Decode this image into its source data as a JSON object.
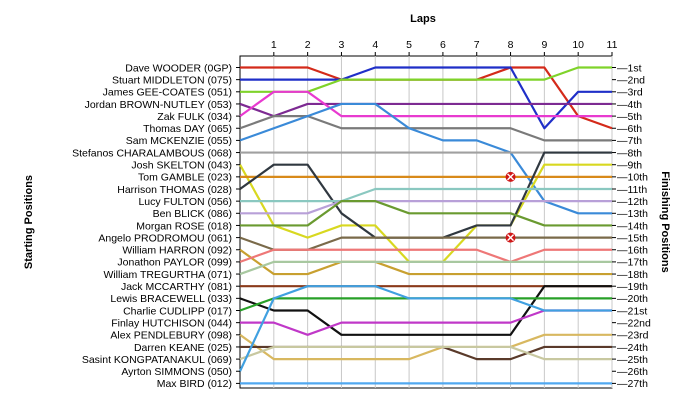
{
  "chart_data": {
    "type": "line",
    "title": "",
    "xlabel": "Laps",
    "ylabel_left": "Starting Positions",
    "ylabel_right": "Finishing Positions",
    "x": [
      0,
      1,
      2,
      3,
      4,
      5,
      6,
      7,
      8,
      9,
      10,
      11
    ],
    "x_tick_labels": [
      "1",
      "2",
      "3",
      "4",
      "5",
      "6",
      "7",
      "8",
      "9",
      "10",
      "11"
    ],
    "position_range": [
      1,
      27
    ],
    "grid": true,
    "starting_positions": [
      "Dave WOODER (0GP)",
      "Stuart MIDDLETON (075)",
      "James GEE-COATES (051)",
      "Jordan BROWN-NUTLEY (053)",
      "Zak FULK (034)",
      "Thomas DAY (065)",
      "Sam MCKENZIE (055)",
      "Stefanos CHARALAMBOUS (068)",
      "Josh SKELTON (043)",
      "Tom GAMBLE (023)",
      "Harrison THOMAS (028)",
      "Lucy FULTON (056)",
      "Ben BLICK (086)",
      "Morgan ROSE (018)",
      "Angelo PRODROMOU (061)",
      "William HARRON (092)",
      "Jonathon PAYLOR (099)",
      "William TREGURTHA (071)",
      "Jack MCCARTHY (081)",
      "Lewis BRACEWELL (033)",
      "Charlie CUDLIPP (017)",
      "Finlay HUTCHISON (044)",
      "Alex PENDLEBURY (098)",
      "Darren KEANE (025)",
      "Sasint KONGPATANAKUL (069)",
      "Ayrton SIMMONS (050)",
      "Max BIRD (012)"
    ],
    "finishing_positions": [
      "1st",
      "2nd",
      "3rd",
      "4th",
      "5th",
      "6th",
      "7th",
      "8th",
      "9th",
      "10th",
      "11th",
      "12th",
      "13th",
      "14th",
      "15th",
      "16th",
      "17th",
      "18th",
      "19th",
      "20th",
      "21st",
      "22nd",
      "23rd",
      "24th",
      "25th",
      "26th",
      "27th"
    ],
    "series": [
      {
        "color": "#d42a1a",
        "values": [
          1,
          1,
          1,
          2,
          2,
          2,
          2,
          2,
          1,
          1,
          5,
          6
        ]
      },
      {
        "color": "#1f2fc8",
        "values": [
          2,
          2,
          2,
          2,
          1,
          1,
          1,
          1,
          1,
          6,
          3,
          3
        ]
      },
      {
        "color": "#7fd32a",
        "values": [
          3,
          3,
          3,
          2,
          2,
          2,
          2,
          2,
          2,
          2,
          1,
          1
        ]
      },
      {
        "color": "#7d2a92",
        "values": [
          4,
          5,
          4,
          4,
          4,
          4,
          4,
          4,
          4,
          4,
          4,
          4
        ]
      },
      {
        "color": "#e83ad0",
        "values": [
          5,
          3,
          3,
          5,
          5,
          5,
          5,
          5,
          5,
          5,
          5,
          5
        ]
      },
      {
        "color": "#7a7a7a",
        "values": [
          6,
          5,
          5,
          6,
          6,
          6,
          6,
          6,
          6,
          7,
          7,
          7
        ]
      },
      {
        "color": "#3a8ad8",
        "values": [
          7,
          6,
          5,
          4,
          4,
          6,
          7,
          7,
          8,
          12,
          13,
          13
        ]
      },
      {
        "color": "#a0a0a0",
        "values": [
          8,
          8,
          8,
          8,
          8,
          8,
          8,
          8,
          8,
          8,
          8,
          8
        ]
      },
      {
        "color": "#d8d820",
        "values": [
          9,
          14,
          15,
          14,
          14,
          17,
          17,
          14,
          14,
          9,
          9,
          9
        ]
      },
      {
        "color": "#d88a1a",
        "values": [
          10,
          10,
          10,
          10,
          10,
          10,
          10,
          10,
          10,
          10,
          10,
          10
        ]
      },
      {
        "color": "#303840",
        "values": [
          11,
          9,
          9,
          13,
          15,
          15,
          15,
          14,
          14,
          8,
          8,
          8
        ]
      },
      {
        "color": "#8ac8c0",
        "values": [
          12,
          12,
          12,
          12,
          11,
          11,
          11,
          11,
          11,
          11,
          11,
          11
        ]
      },
      {
        "color": "#b8a0d8",
        "values": [
          13,
          13,
          13,
          12,
          12,
          12,
          12,
          12,
          12,
          12,
          12,
          12
        ]
      },
      {
        "color": "#6a9a30",
        "values": [
          14,
          14,
          14,
          12,
          12,
          13,
          13,
          13,
          13,
          14,
          14,
          14
        ]
      },
      {
        "color": "#7a6a4a",
        "values": [
          15,
          16,
          16,
          15,
          15,
          15,
          15,
          15,
          15,
          15,
          15,
          15
        ]
      },
      {
        "color": "#c8a030",
        "values": [
          16,
          18,
          18,
          17,
          17,
          18,
          18,
          18,
          18,
          18,
          18,
          18
        ]
      },
      {
        "color": "#ee7777",
        "values": [
          17,
          16,
          16,
          16,
          16,
          16,
          16,
          16,
          17,
          16,
          16,
          16
        ]
      },
      {
        "color": "#a8c8a0",
        "values": [
          18,
          17,
          17,
          17,
          17,
          17,
          17,
          17,
          17,
          17,
          17,
          17
        ]
      },
      {
        "color": "#8a3a1a",
        "values": [
          19,
          19,
          19,
          19,
          19,
          19,
          19,
          19,
          19,
          19,
          19,
          19
        ]
      },
      {
        "color": "#111111",
        "values": [
          20,
          21,
          21,
          23,
          23,
          23,
          23,
          23,
          23,
          19,
          19,
          19
        ]
      },
      {
        "color": "#28a028",
        "values": [
          21,
          20,
          20,
          20,
          20,
          20,
          20,
          20,
          20,
          20,
          20,
          20
        ]
      },
      {
        "color": "#c038c8",
        "values": [
          22,
          22,
          23,
          22,
          22,
          22,
          22,
          22,
          22,
          21,
          21,
          21
        ]
      },
      {
        "color": "#d8b860",
        "values": [
          23,
          25,
          25,
          25,
          25,
          25,
          24,
          24,
          24,
          23,
          23,
          23
        ]
      },
      {
        "color": "#5a3a2a",
        "values": [
          24,
          24,
          24,
          24,
          24,
          24,
          24,
          25,
          25,
          24,
          24,
          24
        ]
      },
      {
        "color": "#c8c8a0",
        "values": [
          25,
          24,
          24,
          24,
          24,
          24,
          24,
          24,
          24,
          25,
          25,
          25
        ]
      },
      {
        "color": "#40a0e0",
        "values": [
          26,
          20,
          19,
          19,
          19,
          20,
          20,
          20,
          20,
          21,
          21,
          21
        ]
      },
      {
        "color": "#50a8f0",
        "values": [
          27,
          27,
          27,
          27,
          27,
          27,
          27,
          27,
          27,
          27,
          27,
          27
        ]
      }
    ],
    "retirements": [
      {
        "lap": 8,
        "position": 10
      },
      {
        "lap": 8,
        "position": 15
      }
    ]
  }
}
